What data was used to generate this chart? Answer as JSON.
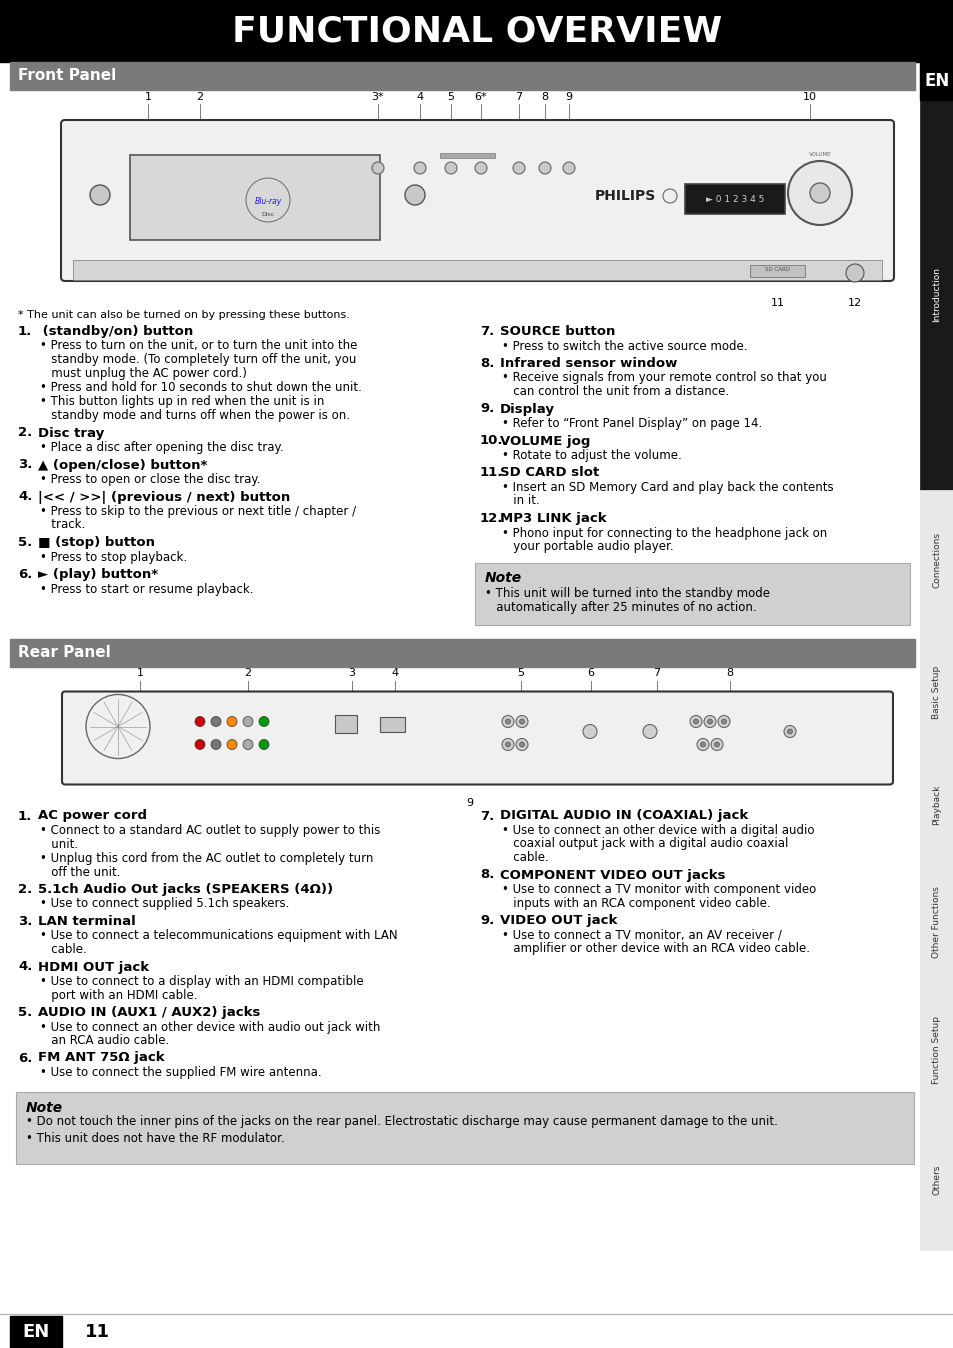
{
  "title": "FUNCTIONAL OVERVIEW",
  "title_bg": "#000000",
  "title_color": "#ffffff",
  "page_bg": "#ffffff",
  "section_header_bg": "#7a7a7a",
  "section_header_color": "#ffffff",
  "note_bg": "#d0d0d0",
  "sidebar_labels": [
    "Introduction",
    "Connections",
    "Basic Setup",
    "Playback",
    "Other Functions",
    "Function Setup",
    "Others"
  ],
  "sidebar_bg_dark": "#000000",
  "sidebar_bg_light": "#e0e0e0",
  "front_panel_title": "Front Panel",
  "rear_panel_title": "Rear Panel",
  "footnote": "* The unit can also be turned on by pressing these buttons.",
  "front_items_left": [
    {
      "num": "1.",
      "bold": " (standby/on) button",
      "power_sym": true,
      "bullets": [
        "Press to turn on the unit, or to turn the unit into the standby mode. (To completely turn off the unit, you must unplug the AC power cord.)",
        "Press and hold for 10 seconds to shut down the unit.",
        "This button lights up in red when the unit is in standby mode and turns off when the power is on."
      ]
    },
    {
      "num": "2.",
      "bold": "Disc tray",
      "power_sym": false,
      "bullets": [
        "Place a disc after opening the disc tray."
      ]
    },
    {
      "num": "3.",
      "bold": "▲ (open/close) button*",
      "power_sym": false,
      "bullets": [
        "Press to open or close the disc tray."
      ]
    },
    {
      "num": "4.",
      "bold": "|<< / >>| (previous / next) button",
      "power_sym": false,
      "bullets": [
        "Press to skip to the previous or next title / chapter / track."
      ]
    },
    {
      "num": "5.",
      "bold": "■ (stop) button",
      "power_sym": false,
      "bullets": [
        "Press to stop playback."
      ]
    },
    {
      "num": "6.",
      "bold": "► (play) button*",
      "power_sym": false,
      "bullets": [
        "Press to start or resume playback."
      ]
    }
  ],
  "front_items_right": [
    {
      "num": "7.",
      "bold": "SOURCE button",
      "bullets": [
        "Press to switch the active source mode."
      ]
    },
    {
      "num": "8.",
      "bold": "Infrared sensor window",
      "bullets": [
        "Receive signals from your remote control so that you can control the unit from a distance."
      ]
    },
    {
      "num": "9.",
      "bold": "Display",
      "bullets": [
        "Refer to “Front Panel Display” on page 14."
      ]
    },
    {
      "num": "10.",
      "bold": "VOLUME jog",
      "bullets": [
        "Rotate to adjust the volume."
      ]
    },
    {
      "num": "11.",
      "bold": "SD CARD slot",
      "bullets": [
        "Insert an SD Memory Card and play back the contents in it."
      ]
    },
    {
      "num": "12.",
      "bold": "MP3 LINK jack",
      "bullets": [
        "Phono input for connecting to the headphone jack on your portable audio player."
      ]
    }
  ],
  "front_note": "This unit will be turned into the standby mode\nautomatically after 25 minutes of no action.",
  "rear_items_left": [
    {
      "num": "1.",
      "bold": "AC power cord",
      "bullets": [
        "Connect to a standard AC outlet to supply power to this unit.",
        "Unplug this cord from the AC outlet to completely turn off the unit."
      ]
    },
    {
      "num": "2.",
      "bold": "5.1ch Audio Out jacks (SPEAKERS (4Ω))",
      "bullets": [
        "Use to connect supplied 5.1ch speakers."
      ]
    },
    {
      "num": "3.",
      "bold": "LAN terminal",
      "bullets": [
        "Use to connect a telecommunications equipment with LAN cable."
      ]
    },
    {
      "num": "4.",
      "bold": "HDMI OUT jack",
      "bullets": [
        "Use to connect to a display with an HDMI compatible port with an HDMI cable."
      ]
    },
    {
      "num": "5.",
      "bold": "AUDIO IN (AUX1 / AUX2) jacks",
      "bullets": [
        "Use to connect an other device with audio out jack with an RCA audio cable."
      ]
    },
    {
      "num": "6.",
      "bold": "FM ANT 75Ω jack",
      "bullets": [
        "Use to connect the supplied FM wire antenna."
      ]
    }
  ],
  "rear_items_right": [
    {
      "num": "7.",
      "bold": "DIGITAL AUDIO IN (COAXIAL) jack",
      "bullets": [
        "Use to connect an other device with a digital audio coaxial output jack with a digital audio coaxial cable."
      ]
    },
    {
      "num": "8.",
      "bold": "COMPONENT VIDEO OUT jacks",
      "bullets": [
        "Use to connect a TV monitor with component video inputs with an RCA component video cable."
      ]
    },
    {
      "num": "9.",
      "bold": "VIDEO OUT jack",
      "bullets": [
        "Use to connect a TV monitor, an AV receiver / amplifier or other device with an RCA video cable."
      ]
    }
  ],
  "rear_note_lines": [
    "Do not touch the inner pins of the jacks on the rear panel. Electrostatic discharge may cause permanent damage to the unit.",
    "This unit does not have the RF modulator."
  ]
}
